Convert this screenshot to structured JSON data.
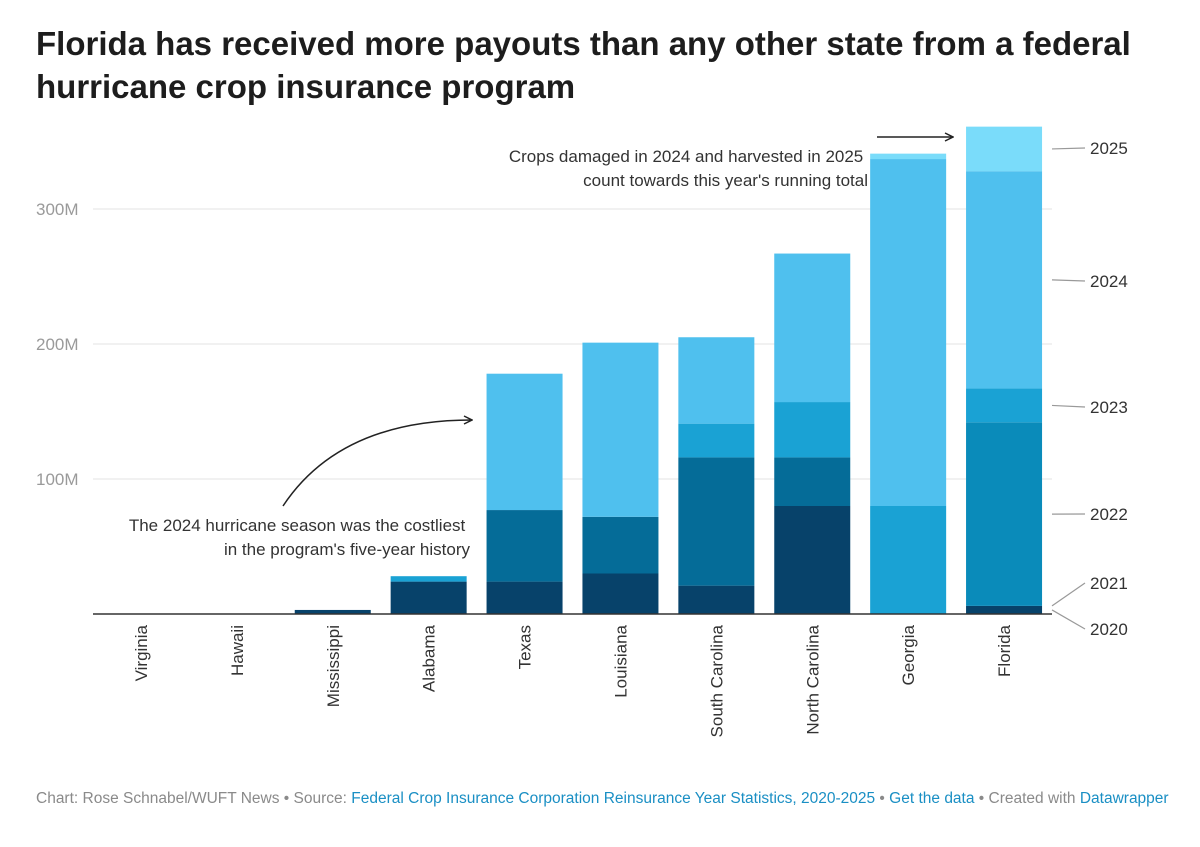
{
  "title": "Florida has received more payouts than any other state from a federal hurricane crop insurance program",
  "chart_data": {
    "type": "bar",
    "stacked": true,
    "categories": [
      "Virginia",
      "Hawaii",
      "Mississippi",
      "Alabama",
      "Texas",
      "Louisiana",
      "South Carolina",
      "North Carolina",
      "Georgia",
      "Florida"
    ],
    "series": [
      {
        "name": "2020",
        "color": "#07426a",
        "values": [
          0,
          0,
          3,
          24,
          24,
          30,
          21,
          80,
          0,
          6
        ]
      },
      {
        "name": "2021",
        "color": "#056c98",
        "values": [
          0,
          0,
          0,
          0,
          53,
          42,
          95,
          36,
          0,
          0
        ]
      },
      {
        "name": "2022",
        "color": "#0a8bba",
        "values": [
          0,
          0,
          0,
          0,
          0,
          0,
          0,
          0,
          0,
          136
        ]
      },
      {
        "name": "2023",
        "color": "#1aa2d4",
        "values": [
          0,
          0,
          0,
          4,
          0,
          0,
          25,
          41,
          80,
          25
        ]
      },
      {
        "name": "2024",
        "color": "#4fc0ee",
        "values": [
          0,
          0,
          0,
          0,
          101,
          129,
          64,
          110,
          257,
          161
        ]
      },
      {
        "name": "2025",
        "color": "#7adcfa",
        "values": [
          0,
          0,
          0,
          0,
          0,
          0,
          0,
          0,
          4,
          33
        ]
      }
    ],
    "y_ticks": [
      {
        "value": 100,
        "label": "100M"
      },
      {
        "value": 200,
        "label": "200M"
      },
      {
        "value": 300,
        "label": "300M"
      }
    ],
    "ylim": [
      0,
      360
    ],
    "grid": true,
    "legend": "right-side labels",
    "annotations": [
      {
        "lines": [
          "Crops damaged in 2024 and harvested in 2025",
          "count towards this year's running total"
        ]
      },
      {
        "lines": [
          "The 2024 hurricane season was the costliest",
          "in the program's five-year history"
        ]
      }
    ]
  },
  "footer": {
    "credit": "Chart: Rose Schnabel/WUFT News • Source: ",
    "source_link": "Federal Crop Insurance Corporation Reinsurance Year Statistics, 2020-2025",
    "sep": " • ",
    "data_link": "Get the data",
    "created": " • Created with ",
    "tool_link": "Datawrapper"
  }
}
